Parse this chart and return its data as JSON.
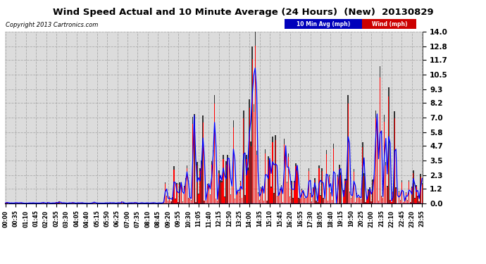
{
  "title": "Wind Speed Actual and 10 Minute Average (24 Hours)  (New)  20130829",
  "copyright": "Copyright 2013 Cartronics.com",
  "legend_labels": [
    "10 Min Avg (mph)",
    "Wind (mph)"
  ],
  "legend_colors": [
    "#0000ff",
    "#ff0000"
  ],
  "legend_bg_colors": [
    "#0000bb",
    "#cc0000"
  ],
  "yticks": [
    0.0,
    1.2,
    2.3,
    3.5,
    4.7,
    5.8,
    7.0,
    8.2,
    9.3,
    10.5,
    11.7,
    12.8,
    14.0
  ],
  "ylim": [
    0.0,
    14.0
  ],
  "bg_color": "#ffffff",
  "plot_bg_color": "#dcdcdc",
  "grid_color": "#aaaaaa",
  "bar_color": "#ff0000",
  "dark_bar_color": "#333333",
  "line_color": "#0000ff",
  "baseline_color": "#0000ff",
  "tick_step_min": 35,
  "interval_min": 5,
  "n_points": 288
}
